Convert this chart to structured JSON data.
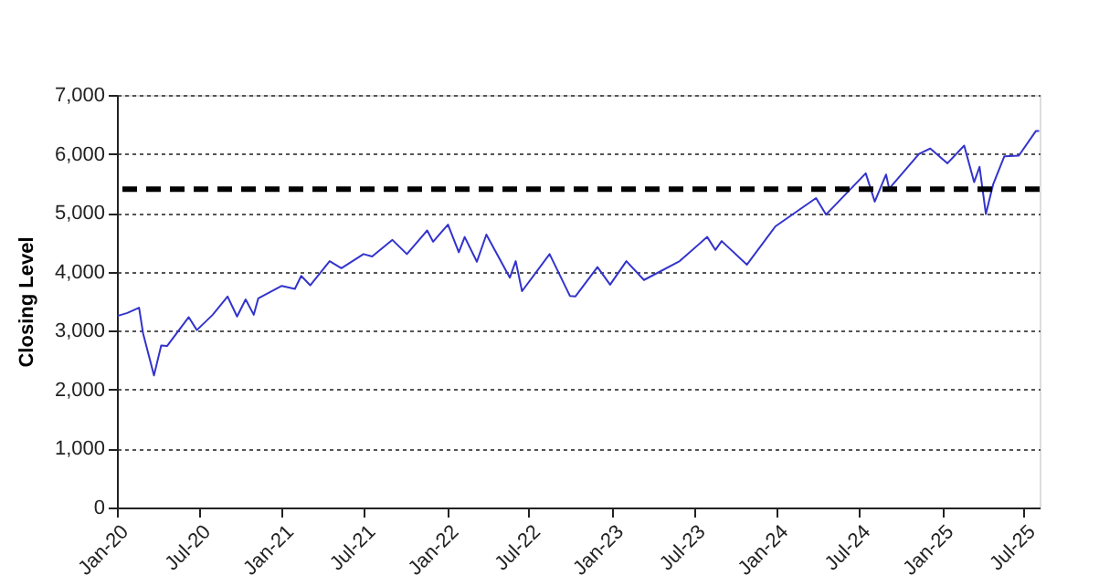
{
  "chart_data": {
    "type": "line",
    "ylabel": "Closing Level",
    "x": [
      "2020-01-02",
      "2020-01-24",
      "2020-02-19",
      "2020-02-28",
      "2020-03-23",
      "2020-04-08",
      "2020-04-21",
      "2020-06-08",
      "2020-06-26",
      "2020-07-31",
      "2020-09-02",
      "2020-09-23",
      "2020-10-12",
      "2020-10-30",
      "2020-11-09",
      "2020-12-31",
      "2021-01-29",
      "2021-02-12",
      "2021-03-04",
      "2021-04-16",
      "2021-05-12",
      "2021-06-30",
      "2021-07-19",
      "2021-09-02",
      "2021-10-04",
      "2021-11-18",
      "2021-12-01",
      "2022-01-03",
      "2022-01-27",
      "2022-02-09",
      "2022-03-08",
      "2022-03-29",
      "2022-05-20",
      "2022-06-02",
      "2022-06-16",
      "2022-08-16",
      "2022-09-30",
      "2022-10-12",
      "2022-11-30",
      "2022-12-28",
      "2023-02-02",
      "2023-03-13",
      "2023-05-31",
      "2023-07-31",
      "2023-08-18",
      "2023-09-01",
      "2023-10-27",
      "2023-12-29",
      "2024-03-28",
      "2024-04-19",
      "2024-07-16",
      "2024-08-05",
      "2024-08-30",
      "2024-09-06",
      "2024-11-11",
      "2024-12-06",
      "2025-01-13",
      "2025-02-19",
      "2025-03-13",
      "2025-03-25",
      "2025-04-08",
      "2025-04-24",
      "2025-05-19",
      "2025-06-20",
      "2025-07-28",
      "2025-08-04"
    ],
    "series": [
      {
        "color": "#3333cc",
        "values": [
          3250,
          3300,
          3390,
          2950,
          2240,
          2750,
          2740,
          3230,
          3010,
          3270,
          3580,
          3240,
          3530,
          3270,
          3550,
          3760,
          3710,
          3930,
          3770,
          4180,
          4060,
          4300,
          4260,
          4540,
          4300,
          4700,
          4510,
          4800,
          4330,
          4590,
          4170,
          4630,
          3900,
          4180,
          3670,
          4300,
          3590,
          3580,
          4080,
          3780,
          4180,
          3860,
          4180,
          4590,
          4370,
          4520,
          4120,
          4770,
          5250,
          4970,
          5670,
          5190,
          5650,
          5410,
          6000,
          6090,
          5840,
          6140,
          5520,
          5780,
          4980,
          5480,
          5960,
          5970,
          6390,
          6390
        ]
      }
    ],
    "xlim": [
      "2020-01-01",
      "2025-08-05"
    ],
    "xticks": [
      {
        "value": "2020-01-01",
        "label": "Jan-20"
      },
      {
        "value": "2020-07-01",
        "label": "Jul-20"
      },
      {
        "value": "2021-01-01",
        "label": "Jan-21"
      },
      {
        "value": "2021-07-01",
        "label": "Jul-21"
      },
      {
        "value": "2022-01-01",
        "label": "Jan-22"
      },
      {
        "value": "2022-07-01",
        "label": "Jul-22"
      },
      {
        "value": "2023-01-01",
        "label": "Jan-23"
      },
      {
        "value": "2023-07-01",
        "label": "Jul-23"
      },
      {
        "value": "2024-01-01",
        "label": "Jan-24"
      },
      {
        "value": "2024-07-01",
        "label": "Jul-24"
      },
      {
        "value": "2025-01-01",
        "label": "Jan-25"
      },
      {
        "value": "2025-07-01",
        "label": "Jul-25"
      }
    ],
    "ylim": [
      0,
      7000
    ],
    "yticks": [
      {
        "value": 0,
        "label": "0"
      },
      {
        "value": 1000,
        "label": "1,000"
      },
      {
        "value": 2000,
        "label": "2,000"
      },
      {
        "value": 3000,
        "label": "3,000"
      },
      {
        "value": 4000,
        "label": "4,000"
      },
      {
        "value": 5000,
        "label": "5,000"
      },
      {
        "value": 6000,
        "label": "6,000"
      },
      {
        "value": 7000,
        "label": "7,000"
      }
    ],
    "grid": "y",
    "line_style": "solid",
    "marker": "none",
    "ref_lines": [
      {
        "axis": "y",
        "value": 5400,
        "color": "#000000",
        "line_style": "dashed"
      }
    ]
  }
}
